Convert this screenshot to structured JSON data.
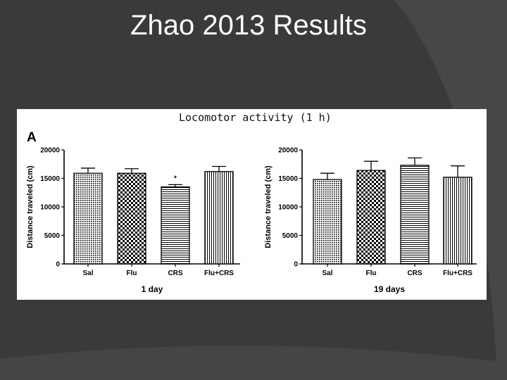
{
  "slide": {
    "title": "Zhao 2013 Results"
  },
  "figure": {
    "title": "Locomotor activity (1 h)",
    "panel_label": "A"
  },
  "colors": {
    "background": "#3a3a3a",
    "accent_swoosh": "#4a4a4a",
    "bar_ink": "#000000"
  },
  "chart_data": [
    {
      "type": "bar",
      "categories": [
        "Sal",
        "Flu",
        "CRS",
        "Flu+CRS"
      ],
      "patterns": [
        "dots",
        "checker",
        "hlines",
        "vlines"
      ],
      "values": [
        15900,
        15900,
        13500,
        16200
      ],
      "errors": [
        900,
        800,
        400,
        900
      ],
      "annotations": [
        "",
        "",
        "*",
        ""
      ],
      "xlabel": "1 day",
      "ylabel": "Distance traveled (cm)",
      "ylim": [
        0,
        20000
      ],
      "yticks": [
        0,
        5000,
        10000,
        15000,
        20000
      ]
    },
    {
      "type": "bar",
      "categories": [
        "Sal",
        "Flu",
        "CRS",
        "Flu+CRS"
      ],
      "patterns": [
        "dots",
        "checker",
        "hlines",
        "vlines"
      ],
      "values": [
        14800,
        16400,
        17300,
        15200
      ],
      "errors": [
        1100,
        1600,
        1300,
        2000
      ],
      "annotations": [
        "",
        "",
        "",
        ""
      ],
      "xlabel": "19 days",
      "ylabel": "Distance traveled (cm)",
      "ylim": [
        0,
        20000
      ],
      "yticks": [
        0,
        5000,
        10000,
        15000,
        20000
      ]
    }
  ]
}
